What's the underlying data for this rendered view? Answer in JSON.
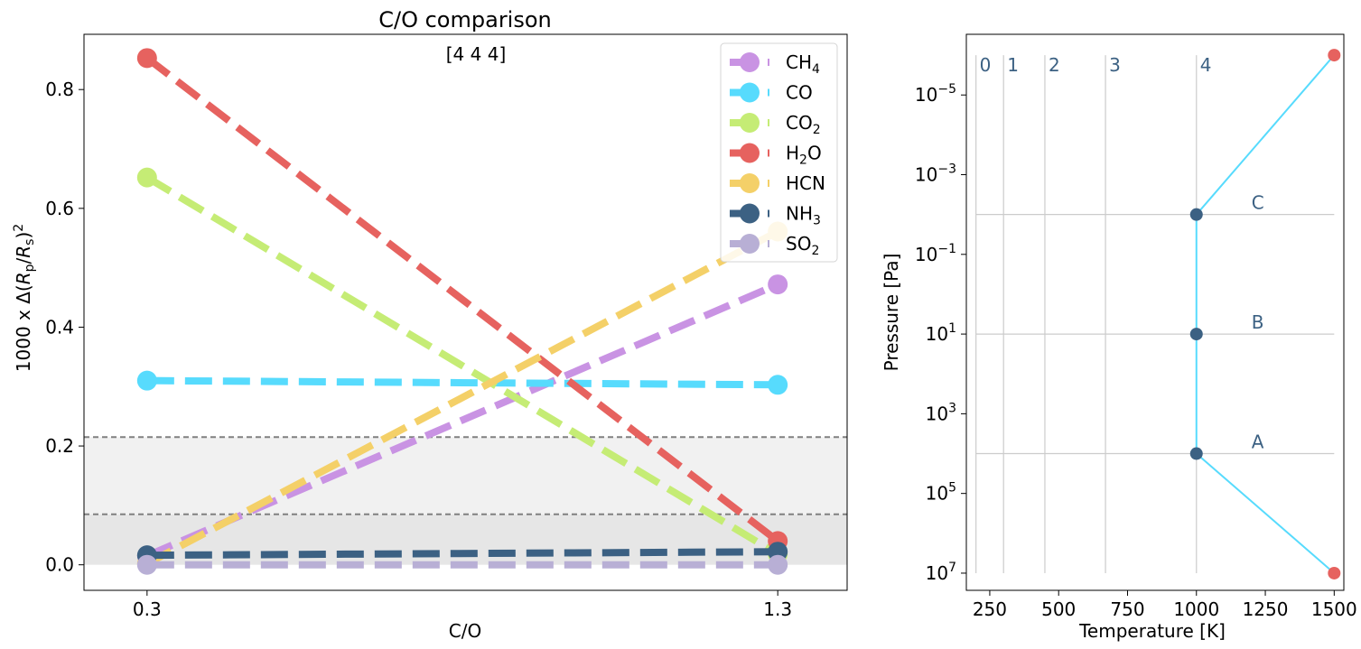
{
  "chart_data": [
    {
      "type": "line",
      "title": "C/O comparison",
      "annotation": "[4 4 4]",
      "xlabel": "C/O",
      "ylabel": "1000 x Δ(Rp/Rs)²",
      "ylabel_parts": {
        "prefix": "1000 x Δ(",
        "r1": "R",
        "s1": "p",
        "slash": "/",
        "r2": "R",
        "s2": "s",
        "suffix": ")",
        "exp": "2"
      },
      "x": [
        0.3,
        1.3
      ],
      "x_ticks": [
        0.3,
        1.3
      ],
      "x_tick_labels": [
        "0.3",
        "1.3"
      ],
      "xlim": [
        0.2,
        1.41
      ],
      "ylim": [
        -0.043,
        0.893
      ],
      "y_ticks": [
        0.0,
        0.2,
        0.4,
        0.6,
        0.8
      ],
      "y_tick_labels": [
        "0.0",
        "0.2",
        "0.4",
        "0.6",
        "0.8"
      ],
      "grid": false,
      "legend_position": "top-right",
      "shaded_bands": [
        {
          "y0": 0.0,
          "y1": 0.085,
          "color": "#e6e6e6"
        },
        {
          "y0": 0.085,
          "y1": 0.215,
          "color": "#f1f1f1"
        }
      ],
      "reference_lines": [
        0.085,
        0.215
      ],
      "series": [
        {
          "name": "CH4",
          "sub": "4",
          "base": "CH",
          "color": "#c993e3",
          "values": [
            0.015,
            0.472
          ]
        },
        {
          "name": "CO",
          "sub": "",
          "base": "CO",
          "color": "#57dbfd",
          "values": [
            0.31,
            0.303
          ]
        },
        {
          "name": "CO2",
          "sub": "2",
          "base": "CO",
          "color": "#c5ec75",
          "values": [
            0.652,
            0.018
          ]
        },
        {
          "name": "H2O",
          "sub": "2",
          "base": "H",
          "tail": "O",
          "color": "#e6625f",
          "values": [
            0.853,
            0.04
          ]
        },
        {
          "name": "HCN",
          "sub": "",
          "base": "HCN",
          "color": "#f4d068",
          "values": [
            0.002,
            0.561
          ]
        },
        {
          "name": "NH3",
          "sub": "3",
          "base": "NH",
          "color": "#3c6183",
          "values": [
            0.016,
            0.022
          ]
        },
        {
          "name": "SO2",
          "sub": "2",
          "base": "SO",
          "color": "#b8afd5",
          "values": [
            0.0,
            0.0
          ]
        }
      ]
    },
    {
      "type": "line",
      "title": "",
      "xlabel": "Temperature [K]",
      "ylabel": "Pressure [Pa]",
      "yscale": "log",
      "y_inverted": true,
      "xlim": [
        165,
        1535
      ],
      "x_ticks": [
        250,
        500,
        750,
        1000,
        1250,
        1500
      ],
      "x_tick_labels": [
        "250",
        "500",
        "750",
        "1000",
        "1250",
        "1500"
      ],
      "ylim": [
        27000000.0,
        3e-07
      ],
      "y_tick_exponents": [
        -5,
        -3,
        -1,
        1,
        3,
        5,
        7
      ],
      "grid": false,
      "profile": {
        "color": "#57dbfd",
        "T": [
          1000,
          1500,
          1000,
          1000,
          1000,
          1500
        ],
        "P": [
          10000,
          1e-06,
          0.01,
          10,
          10000,
          10000000.0
        ]
      },
      "profile_path": [
        {
          "T": 1500,
          "P": 1e-06
        },
        {
          "T": 1000,
          "P": 0.01
        },
        {
          "T": 1000,
          "P": 10
        },
        {
          "T": 1000,
          "P": 10000
        },
        {
          "T": 1500,
          "P": 10000000.0
        }
      ],
      "end_points": {
        "color": "#e6625f",
        "points": [
          {
            "T": 1500,
            "P": 1e-06
          },
          {
            "T": 1500,
            "P": 10000000.0
          }
        ]
      },
      "level_points": {
        "color": "#3c6183",
        "points": [
          {
            "T": 1000,
            "P": 0.01
          },
          {
            "T": 1000,
            "P": 10
          },
          {
            "T": 1000,
            "P": 10000
          }
        ]
      },
      "level_lines": [
        {
          "P": 0.01,
          "label": "C"
        },
        {
          "P": 10,
          "label": "B"
        },
        {
          "P": 10000,
          "label": "A"
        }
      ],
      "level_label_T": 1200,
      "temperature_lines": [
        {
          "T": 200,
          "label": "0"
        },
        {
          "T": 300,
          "label": "1"
        },
        {
          "T": 450,
          "label": "2"
        },
        {
          "T": 670,
          "label": "3"
        },
        {
          "T": 1000,
          "label": "4"
        }
      ],
      "label_color": "#3c6183"
    }
  ]
}
